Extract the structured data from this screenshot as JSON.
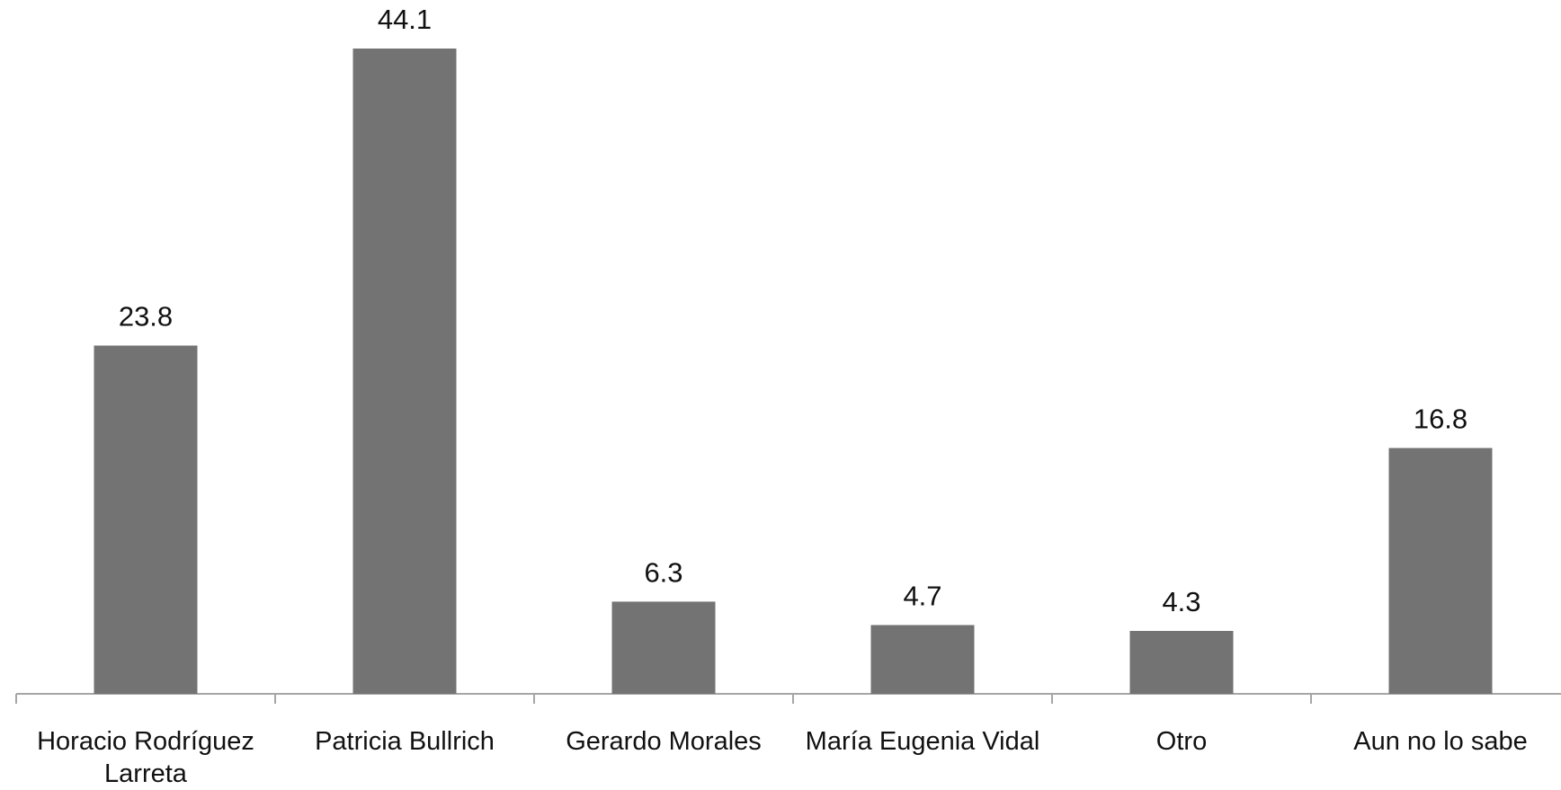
{
  "chart_data": {
    "type": "bar",
    "categories": [
      "Horacio Rodríguez Larreta",
      "Patricia Bullrich",
      "Gerardo Morales",
      "María Eugenia Vidal",
      "Otro",
      "Aun no lo sabe"
    ],
    "values": [
      23.8,
      44.1,
      6.3,
      4.7,
      4.3,
      16.8
    ],
    "color": "#737373"
  }
}
